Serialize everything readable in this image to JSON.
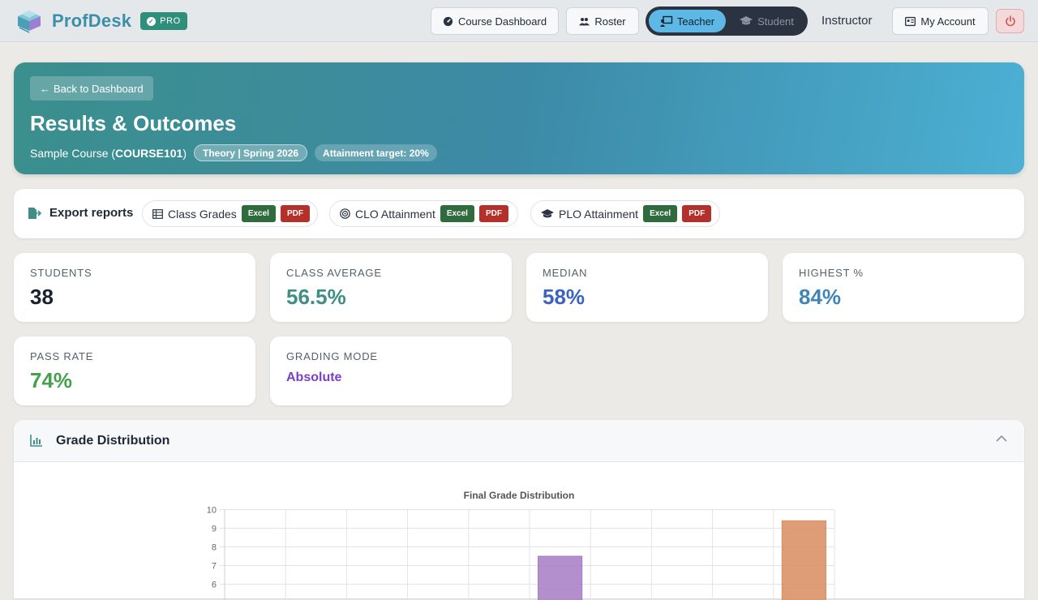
{
  "navbar": {
    "brand": "ProfDesk",
    "pro_label": "PRO",
    "course_dashboard": "Course Dashboard",
    "roster": "Roster",
    "role_teacher": "Teacher",
    "role_student": "Student",
    "user_role": "Instructor",
    "my_account": "My Account"
  },
  "hero": {
    "back_label": "Back to Dashboard",
    "title": "Results & Outcomes",
    "course_prefix": "Sample Course (",
    "course_code": "COURSE101",
    "course_suffix": ")",
    "term_pill": "Theory | Spring 2026",
    "target_pill": "Attainment target: 20%"
  },
  "exports": {
    "label": "Export reports",
    "groups": [
      {
        "label": "Class Grades",
        "icon": "table-icon"
      },
      {
        "label": "CLO Attainment",
        "icon": "target-icon"
      },
      {
        "label": "PLO Attainment",
        "icon": "graduation-cap-icon"
      }
    ],
    "excel_label": "Excel",
    "pdf_label": "PDF"
  },
  "stats": [
    {
      "label": "STUDENTS",
      "value": "38",
      "color": "#1a2230"
    },
    {
      "label": "CLASS AVERAGE",
      "value": "56.5%",
      "color": "#3f8f86"
    },
    {
      "label": "MEDIAN",
      "value": "58%",
      "color": "#3b63c4"
    },
    {
      "label": "HIGHEST %",
      "value": "84%",
      "color": "#3f86b8"
    },
    {
      "label": "PASS RATE",
      "value": "74%",
      "color": "#47a04b"
    },
    {
      "label": "GRADING MODE",
      "value": "Absolute",
      "color": "#7b3fc4"
    }
  ],
  "grade_distribution": {
    "panel_title": "Grade Distribution"
  },
  "chart_data": {
    "type": "bar",
    "title": "Final Grade Distribution",
    "ylim": [
      0,
      10
    ],
    "yticks": [
      10,
      9,
      8,
      7,
      6
    ],
    "grid": true,
    "categories_count": 10,
    "bars": [
      {
        "index": 5,
        "value": 7.5,
        "color": "#a67cc4"
      },
      {
        "index": 9,
        "value": 9.4,
        "color": "#d98c5f"
      }
    ]
  }
}
